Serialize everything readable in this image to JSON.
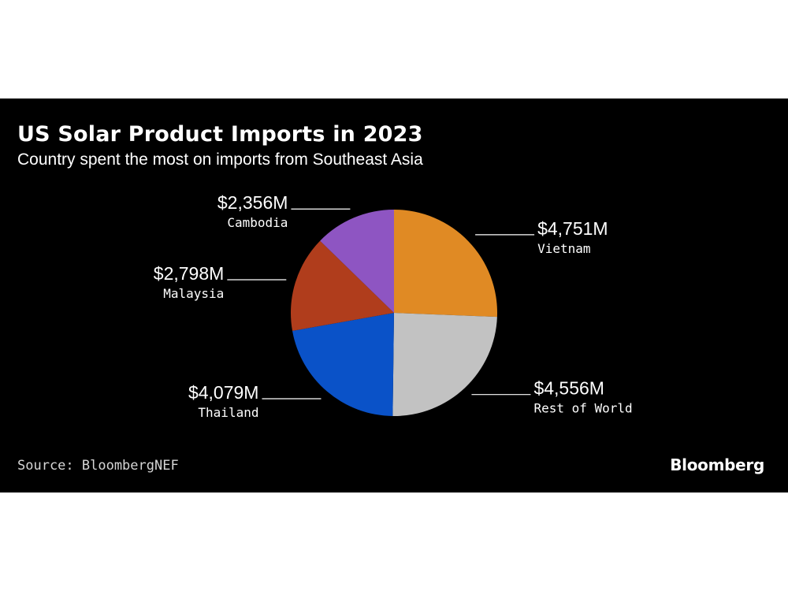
{
  "chart_data": {
    "type": "pie",
    "title": "US Solar Product Imports in 2023",
    "subtitle": "Country spent the most on imports from Southeast Asia",
    "unit": "$M",
    "slices": [
      {
        "name": "Vietnam",
        "value": 4751,
        "value_label": "$4,751M",
        "color": "#e08a24",
        "label_side": "right"
      },
      {
        "name": "Rest of World",
        "value": 4556,
        "value_label": "$4,556M",
        "color": "#c2c2c2",
        "label_side": "right"
      },
      {
        "name": "Thailand",
        "value": 4079,
        "value_label": "$4,079M",
        "color": "#0a52c8",
        "label_side": "left"
      },
      {
        "name": "Malaysia",
        "value": 2798,
        "value_label": "$2,798M",
        "color": "#b03d1c",
        "label_side": "left"
      },
      {
        "name": "Cambodia",
        "value": 2356,
        "value_label": "$2,356M",
        "color": "#8e55c2",
        "label_side": "left"
      }
    ]
  },
  "footer": {
    "source": "Source: BloombergNEF",
    "brand": "Bloomberg"
  }
}
